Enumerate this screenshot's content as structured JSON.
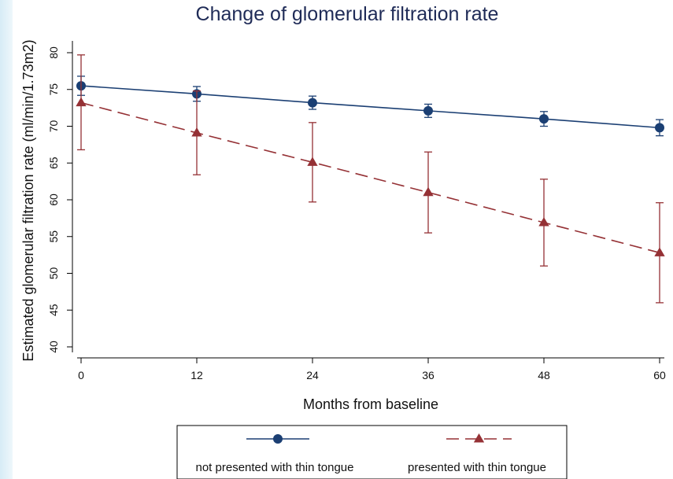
{
  "chart_data": {
    "type": "line",
    "title": "Change of glomerular filtration rate",
    "xlabel": "Months from baseline",
    "ylabel": "Estimated glomerular filtration rate (ml/min/1.73m2)",
    "x": [
      0,
      12,
      24,
      36,
      48,
      60
    ],
    "x_ticks": [
      "0",
      "12",
      "24",
      "36",
      "48",
      "60"
    ],
    "y_ticks": [
      "40",
      "45",
      "50",
      "55",
      "60",
      "65",
      "70",
      "75",
      "80"
    ],
    "xlim": [
      0,
      60
    ],
    "ylim": [
      40,
      80
    ],
    "grid": false,
    "legend_position": "bottom",
    "series": [
      {
        "name": "not presented with thin tongue",
        "color": "#1b3f73",
        "marker": "circle",
        "line_style": "solid",
        "values": [
          75.5,
          74.4,
          73.2,
          72.1,
          71.0,
          69.8
        ],
        "ci_low": [
          74.2,
          73.4,
          72.3,
          71.2,
          70.0,
          68.7
        ],
        "ci_high": [
          76.8,
          75.4,
          74.1,
          73.0,
          72.0,
          70.9
        ]
      },
      {
        "name": "presented with thin tongue",
        "color": "#953135",
        "marker": "triangle",
        "line_style": "dashed",
        "values": [
          73.2,
          69.1,
          65.1,
          61.0,
          56.9,
          52.8
        ],
        "ci_low": [
          66.8,
          63.4,
          59.7,
          55.5,
          51.0,
          46.0
        ],
        "ci_high": [
          79.7,
          74.8,
          70.5,
          66.5,
          62.8,
          59.6
        ]
      }
    ]
  }
}
